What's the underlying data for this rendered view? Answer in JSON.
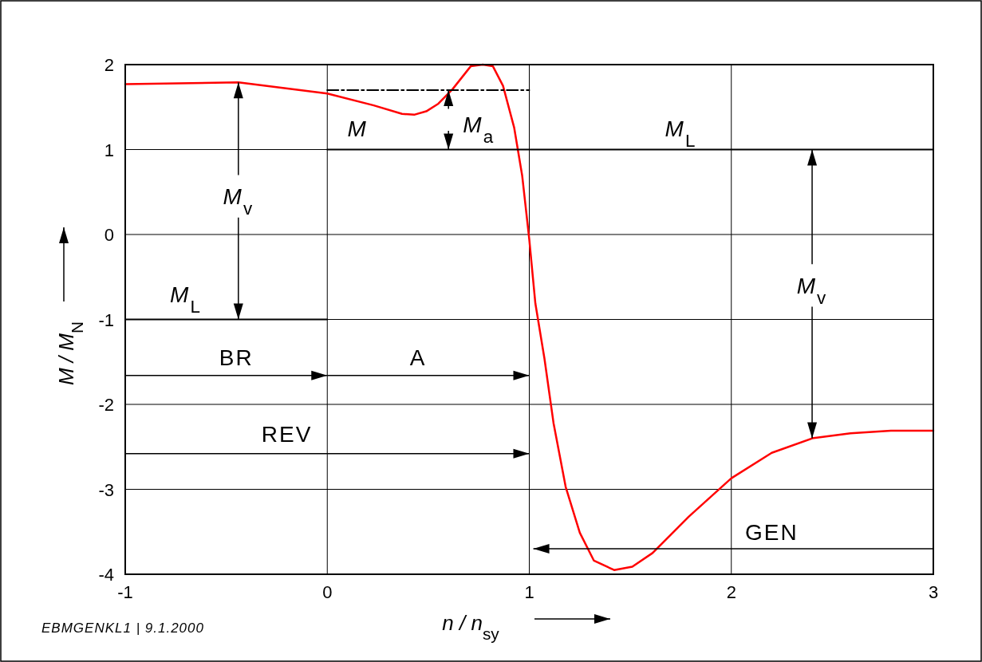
{
  "chart_data": {
    "type": "line",
    "xlabel": "n / n$_{sy}$",
    "ylabel": "M / M$_{N}$",
    "xlim": [
      -1,
      3
    ],
    "ylim": [
      -4,
      2
    ],
    "xticks": [
      -1,
      0,
      1,
      2,
      3
    ],
    "yticks": [
      -4,
      -3,
      -2,
      -1,
      0,
      1,
      2
    ],
    "grid": true,
    "series": [
      {
        "color": "#ff0000",
        "line_style": "solid",
        "x": [
          -1,
          -0.44,
          0,
          0.23,
          0.37,
          0.43,
          0.49,
          0.55,
          0.62,
          0.71,
          0.77,
          0.82,
          0.87,
          0.925,
          0.965,
          1.0,
          1.03,
          1.075,
          1.12,
          1.18,
          1.25,
          1.32,
          1.42,
          1.51,
          1.61,
          1.79,
          2.0,
          2.2,
          2.4,
          2.59,
          2.79,
          3.0
        ],
        "values": [
          1.77,
          1.79,
          1.66,
          1.52,
          1.42,
          1.41,
          1.45,
          1.54,
          1.71,
          1.98,
          2.0,
          1.98,
          1.75,
          1.26,
          0.69,
          -0.06,
          -0.81,
          -1.46,
          -2.22,
          -2.97,
          -3.51,
          -3.84,
          -3.95,
          -3.91,
          -3.75,
          -3.32,
          -2.87,
          -2.57,
          -2.4,
          -2.34,
          -2.31,
          -2.31
        ]
      },
      {
        "color": "#000000",
        "line_style": "solid",
        "x": [
          0,
          3
        ],
        "values": [
          1,
          1
        ]
      },
      {
        "color": "#000000",
        "line_style": "solid",
        "x": [
          -1,
          0
        ],
        "values": [
          -1,
          -1
        ]
      },
      {
        "color": "#000000",
        "line_style": "dashed",
        "x": [
          0,
          1
        ],
        "values": [
          1.7,
          1.7
        ]
      }
    ],
    "annotations": [
      "M",
      "M$_{a}$",
      "M$_{L}$",
      "M$_{L}$",
      {
        "text": "M$_{v}$",
        "x": -0.44,
        "y": 1.79
      },
      {
        "text": "M$_{v}$",
        "x": 2.4,
        "y": -2.4
      },
      "BR",
      "A",
      "REV",
      "GEN",
      "EBMGENKL1 | 9.1.2000"
    ]
  }
}
